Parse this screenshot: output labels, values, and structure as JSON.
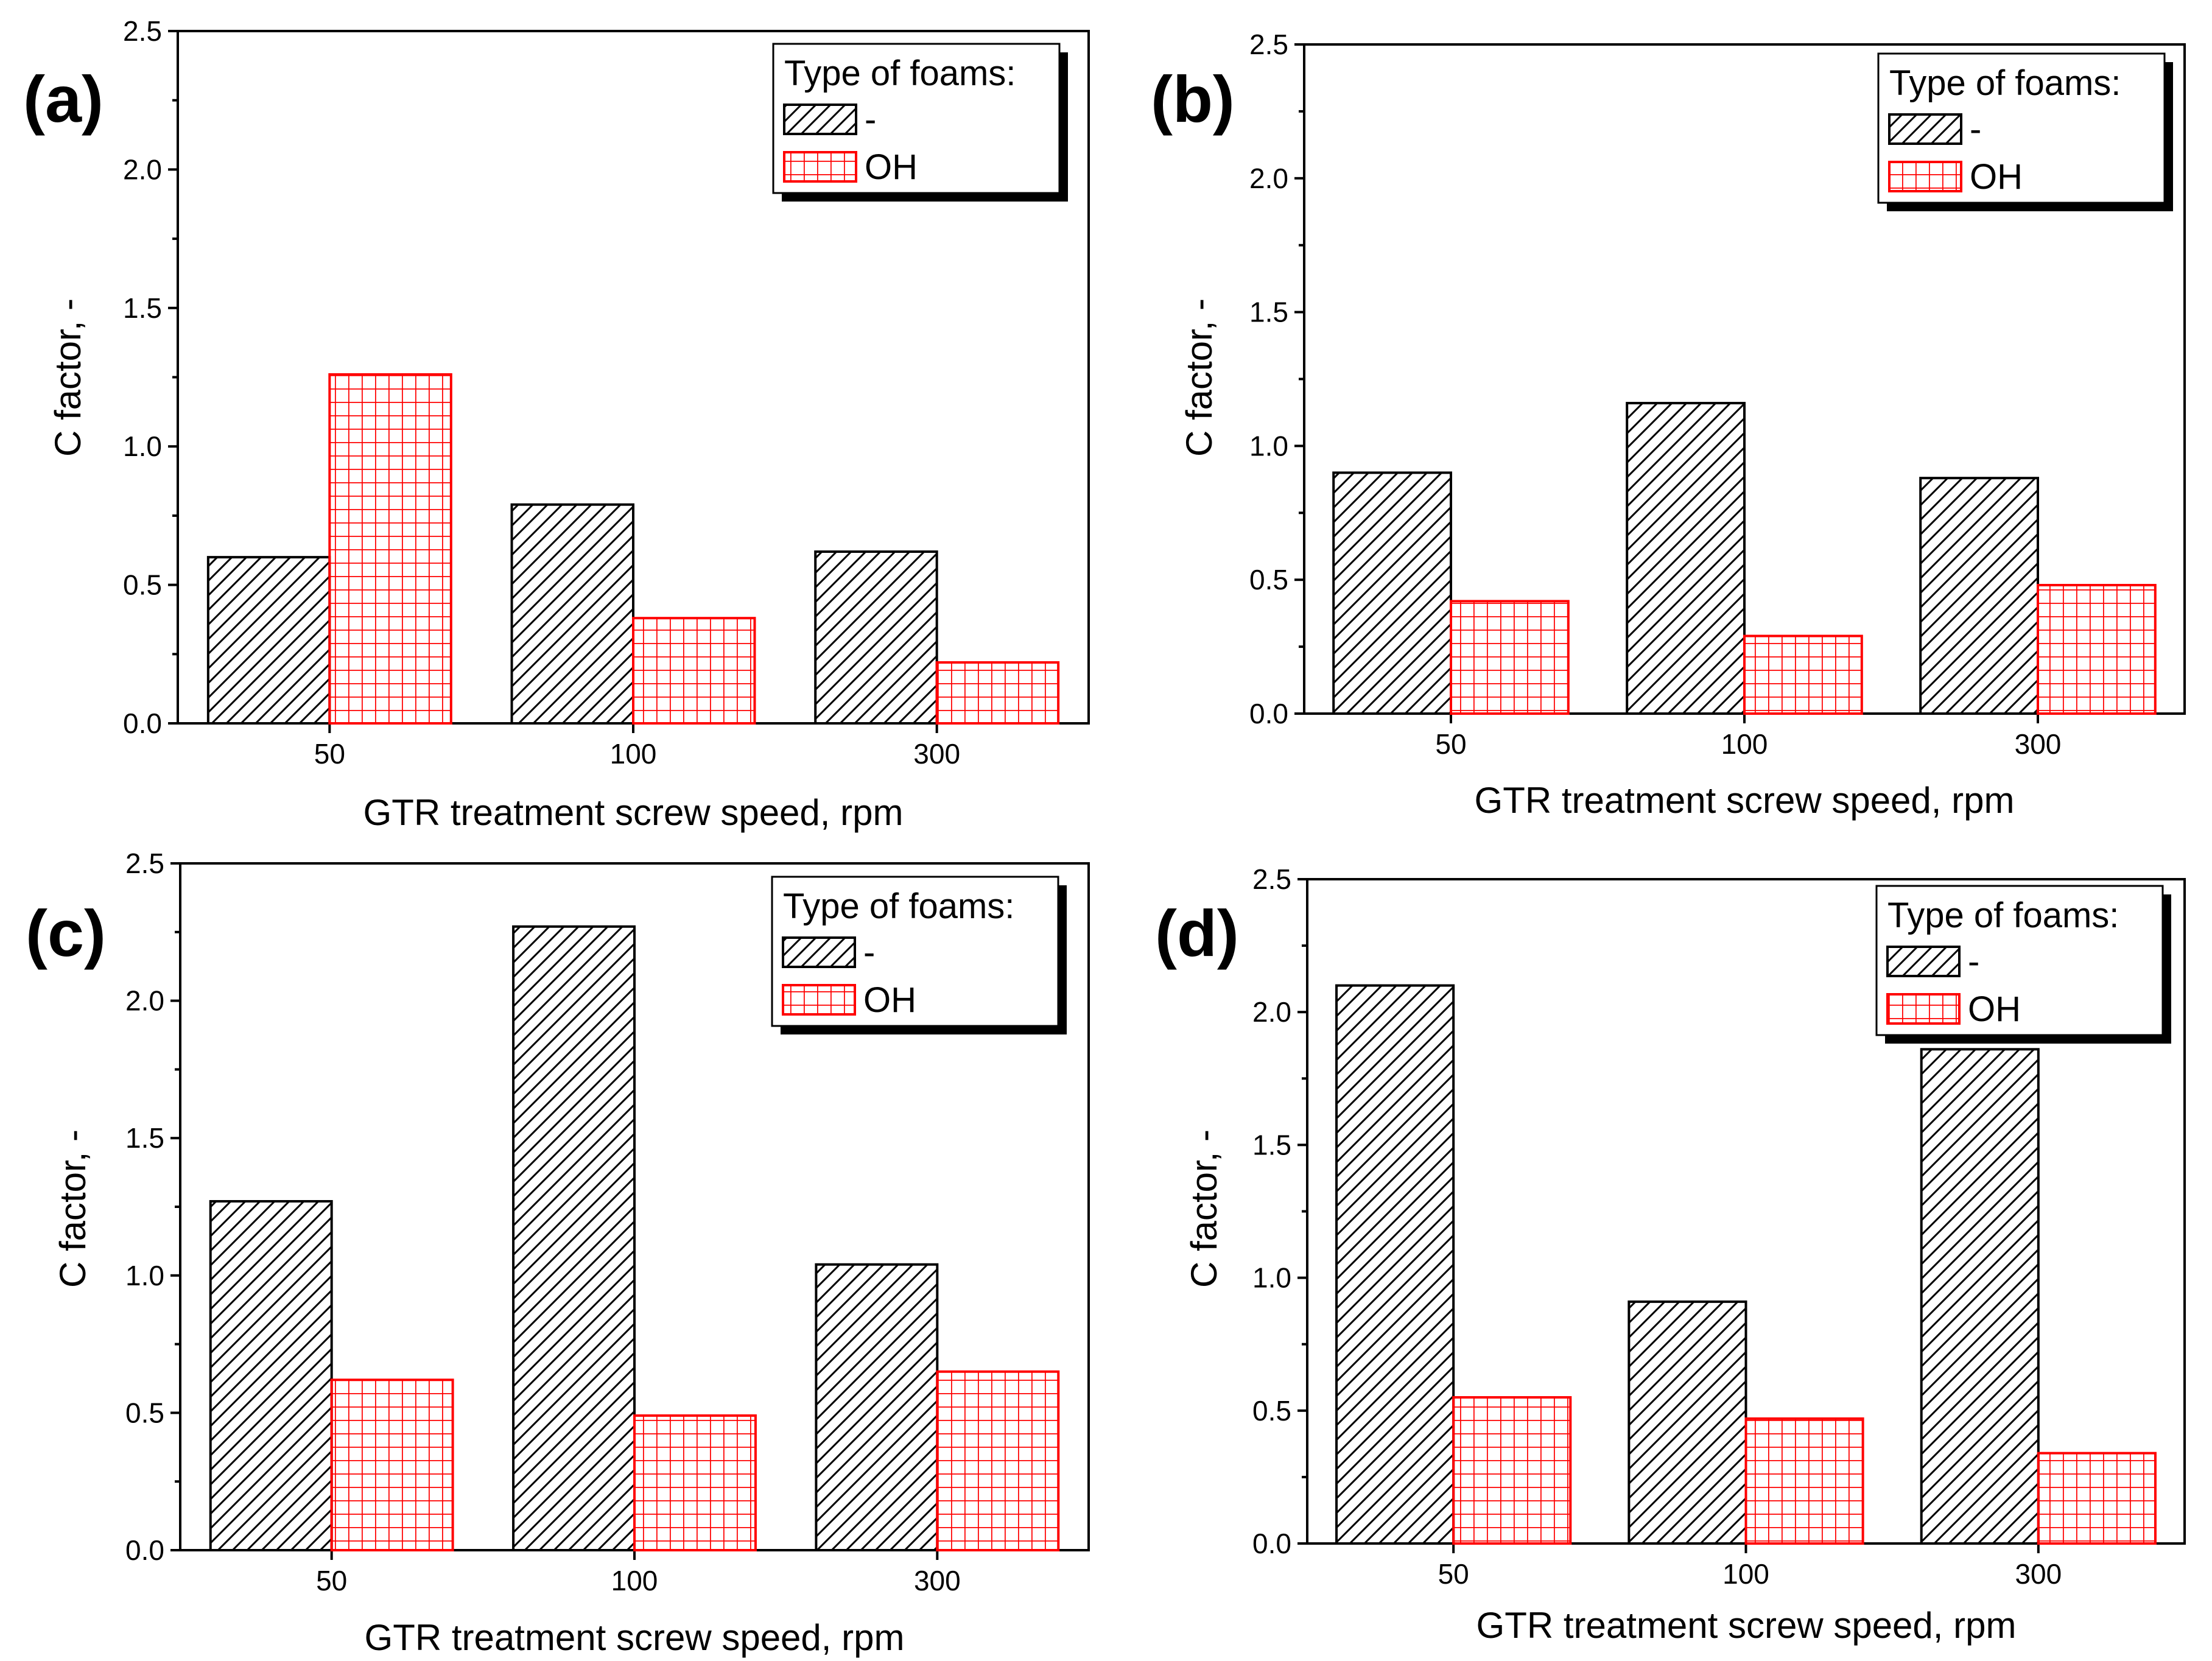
{
  "colors": {
    "series_dash": "#000000",
    "series_oh": "#ff0000",
    "axis": "#000000"
  },
  "chart_data": [
    {
      "type": "bar",
      "panel_label": "(a)",
      "categories": [
        "50",
        "100",
        "300"
      ],
      "series": [
        {
          "name": "-",
          "values": [
            0.6,
            0.79,
            0.62
          ]
        },
        {
          "name": "OH",
          "values": [
            1.26,
            0.38,
            0.22
          ]
        }
      ],
      "xlabel": "GTR treatment screw speed, rpm",
      "ylabel": "C factor, -",
      "ylim": [
        0,
        2.5
      ],
      "yticks": [
        "0.0",
        "0.5",
        "1.0",
        "1.5",
        "2.0",
        "2.5"
      ],
      "legend_title": "Type of foams:",
      "legend_position": "top-right"
    },
    {
      "type": "bar",
      "panel_label": "(b)",
      "categories": [
        "50",
        "100",
        "300"
      ],
      "series": [
        {
          "name": "-",
          "values": [
            0.9,
            1.16,
            0.88
          ]
        },
        {
          "name": "OH",
          "values": [
            0.42,
            0.29,
            0.48
          ]
        }
      ],
      "xlabel": "GTR treatment screw speed, rpm",
      "ylabel": "C factor, -",
      "ylim": [
        0,
        2.5
      ],
      "yticks": [
        "0.0",
        "0.5",
        "1.0",
        "1.5",
        "2.0",
        "2.5"
      ],
      "legend_title": "Type of foams:",
      "legend_position": "top-right"
    },
    {
      "type": "bar",
      "panel_label": "(c)",
      "categories": [
        "50",
        "100",
        "300"
      ],
      "series": [
        {
          "name": "-",
          "values": [
            1.27,
            2.27,
            1.04
          ]
        },
        {
          "name": "OH",
          "values": [
            0.62,
            0.49,
            0.65
          ]
        }
      ],
      "xlabel": "GTR treatment screw speed, rpm",
      "ylabel": "C factor, -",
      "ylim": [
        0,
        2.5
      ],
      "yticks": [
        "0.0",
        "0.5",
        "1.0",
        "1.5",
        "2.0",
        "2.5"
      ],
      "legend_title": "Type of foams:",
      "legend_position": "top-right"
    },
    {
      "type": "bar",
      "panel_label": "(d)",
      "categories": [
        "50",
        "100",
        "300"
      ],
      "series": [
        {
          "name": "-",
          "values": [
            2.1,
            0.91,
            1.86
          ]
        },
        {
          "name": "OH",
          "values": [
            0.55,
            0.47,
            0.34
          ]
        }
      ],
      "xlabel": "GTR treatment screw speed, rpm",
      "ylabel": "C factor, -",
      "ylim": [
        0,
        2.5
      ],
      "yticks": [
        "0.0",
        "0.5",
        "1.0",
        "1.5",
        "2.0",
        "2.5"
      ],
      "legend_title": "Type of foams:",
      "legend_position": "top-right"
    }
  ]
}
